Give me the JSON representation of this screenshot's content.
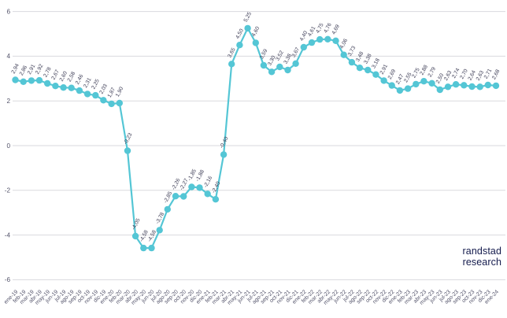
{
  "chart_data": {
    "type": "line",
    "title": "",
    "xlabel": "",
    "ylabel": "",
    "x": [
      "ene-19",
      "feb-19",
      "mar-19",
      "abr-19",
      "may-19",
      "jun-19",
      "jul-19",
      "ago-19",
      "sep-19",
      "oct-19",
      "nov-19",
      "dic-19",
      "ene-20",
      "feb-20",
      "mar-20",
      "abr-20",
      "may-20",
      "jun-20",
      "jul-20",
      "ago-20",
      "sep-20",
      "oct-20",
      "nov-20",
      "dic-20",
      "ene-21",
      "feb-21",
      "mar-21",
      "abr-21",
      "may-21",
      "jun-21",
      "jul-21",
      "ago-21",
      "sep-21",
      "oct-21",
      "nov-21",
      "dic-21",
      "ene-22",
      "feb-22",
      "mar-22",
      "abr-22",
      "may-22",
      "jun-22",
      "jul-22",
      "ago-22",
      "sep-22",
      "oct-22",
      "nov-22",
      "dic-22",
      "ene-23",
      "feb-23",
      "mar-23",
      "abr-23",
      "may-23",
      "jun-23",
      "jul-23",
      "ago-23",
      "sep-23",
      "oct-23",
      "nov-23",
      "dic-23",
      "ene-24"
    ],
    "values": [
      2.94,
      2.86,
      2.91,
      2.92,
      2.78,
      2.67,
      2.6,
      2.58,
      2.46,
      2.31,
      2.25,
      2.03,
      1.87,
      1.9,
      -0.23,
      -4.05,
      -4.58,
      -4.58,
      -3.78,
      -2.85,
      -2.26,
      -2.27,
      -1.85,
      -1.88,
      -2.16,
      -2.4,
      -0.4,
      3.65,
      4.5,
      5.25,
      4.6,
      3.59,
      3.3,
      3.52,
      3.38,
      3.67,
      4.4,
      4.61,
      4.75,
      4.76,
      4.69,
      4.06,
      3.73,
      3.48,
      3.38,
      3.18,
      2.91,
      2.69,
      2.47,
      2.55,
      2.75,
      2.88,
      2.79,
      2.5,
      2.63,
      2.74,
      2.7,
      2.64,
      2.63,
      2.71,
      2.68
    ],
    "ylim": [
      -6,
      6
    ],
    "yticks": [
      6,
      4,
      2,
      0,
      -2,
      -4,
      -6
    ],
    "grid": true,
    "legend": false,
    "data_labels": true,
    "decimal_separator": ",",
    "colors": {
      "line": "#54c6d5",
      "marker": "#54c6d5",
      "grid": "#dadade",
      "axis_text": "#53536a",
      "data_label": "#3c3c55"
    }
  },
  "branding": {
    "line1": "randstad",
    "line2": "research",
    "color": "#141b4d"
  }
}
